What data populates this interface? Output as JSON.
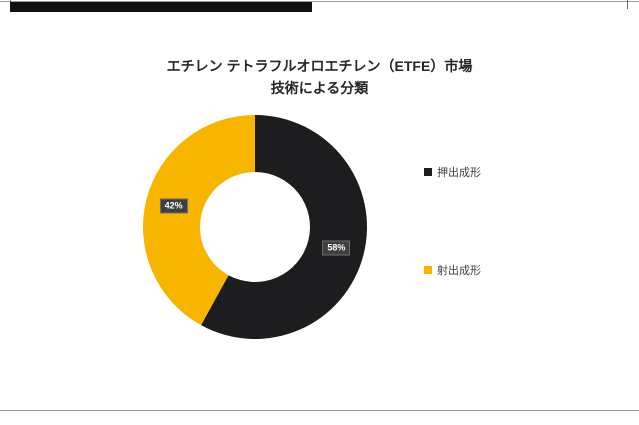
{
  "page": {
    "title_line1": "エチレン テトラフルオロエチレン（ETFE）市場",
    "title_line2": "技術による分類"
  },
  "chart_data": {
    "type": "pie",
    "donut": true,
    "title": "エチレン テトラフルオロエチレン（ETFE）市場 技術による分類",
    "categories": [
      "押出成形",
      "射出成形"
    ],
    "values": [
      58,
      42
    ],
    "data_labels": [
      "58%",
      "42%"
    ],
    "colors": [
      "#1d1d1f",
      "#f7b500"
    ],
    "legend_position": "right",
    "start_angle_deg": 0,
    "direction": "clockwise"
  },
  "legend": {
    "items": [
      {
        "label": "押出成形",
        "color": "#1d1d1f"
      },
      {
        "label": "射出成形",
        "color": "#f7b500"
      }
    ]
  }
}
